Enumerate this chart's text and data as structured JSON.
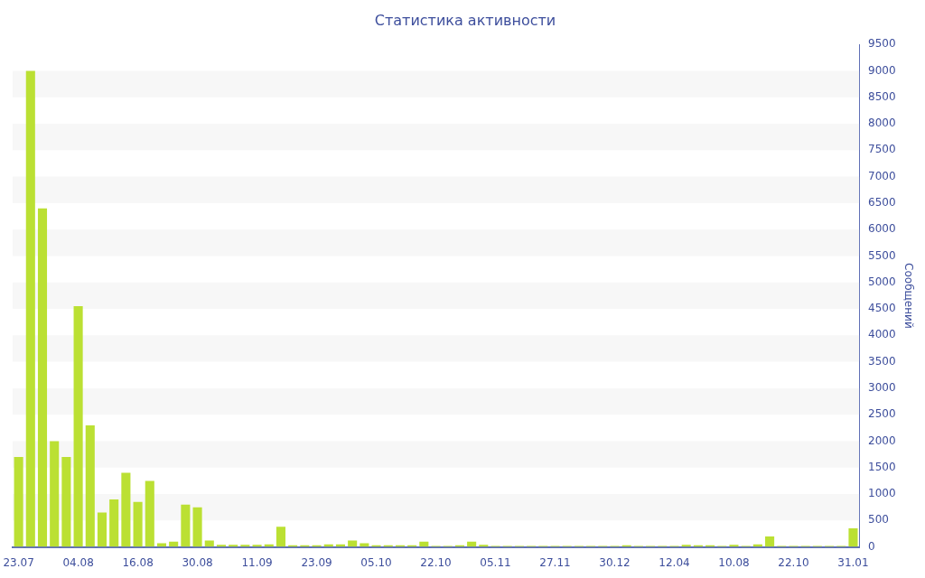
{
  "chart_data": {
    "type": "bar",
    "title": "Статистика активности",
    "ylabel": "Сообщений",
    "categories": [
      "23.07",
      null,
      null,
      null,
      null,
      "04.08",
      null,
      null,
      null,
      null,
      "16.08",
      null,
      null,
      null,
      null,
      "30.08",
      null,
      null,
      null,
      null,
      "11.09",
      null,
      null,
      null,
      null,
      "23.09",
      null,
      null,
      null,
      null,
      "05.10",
      null,
      null,
      null,
      null,
      "22.10",
      null,
      null,
      null,
      null,
      "05.11",
      null,
      null,
      null,
      null,
      "27.11",
      null,
      null,
      null,
      null,
      "30.12",
      null,
      null,
      null,
      null,
      "12.04",
      null,
      null,
      null,
      null,
      "10.08",
      null,
      null,
      null,
      null,
      "22.10",
      null,
      null,
      null,
      null,
      "31.01"
    ],
    "values": [
      1700,
      9000,
      6400,
      2000,
      1700,
      4550,
      2300,
      650,
      900,
      1400,
      850,
      1250,
      70,
      100,
      800,
      750,
      120,
      40,
      40,
      40,
      40,
      50,
      380,
      30,
      30,
      30,
      50,
      50,
      120,
      70,
      30,
      30,
      30,
      30,
      100,
      20,
      20,
      30,
      100,
      40,
      20,
      20,
      20,
      20,
      20,
      20,
      20,
      20,
      20,
      20,
      20,
      30,
      20,
      20,
      20,
      20,
      40,
      30,
      30,
      20,
      40,
      20,
      50,
      200,
      20,
      20,
      20,
      20,
      20,
      20,
      350
    ],
    "color": "#bbe033",
    "ylim": [
      0,
      9500
    ],
    "yticks": [
      0,
      500,
      1000,
      1500,
      2000,
      2500,
      3000,
      3500,
      4000,
      4500,
      5000,
      5500,
      6000,
      6500,
      7000,
      7500,
      8000,
      8500,
      9000,
      9500
    ],
    "bands": [
      {
        "axis": "y",
        "from": 500,
        "to": 1000,
        "color": "#f7f7f7"
      },
      {
        "axis": "y",
        "from": 1500,
        "to": 2000,
        "color": "#f7f7f7"
      },
      {
        "axis": "y",
        "from": 2500,
        "to": 3000,
        "color": "#f7f7f7"
      },
      {
        "axis": "y",
        "from": 3500,
        "to": 4000,
        "color": "#f7f7f7"
      },
      {
        "axis": "y",
        "from": 4500,
        "to": 5000,
        "color": "#f7f7f7"
      },
      {
        "axis": "y",
        "from": 5500,
        "to": 6000,
        "color": "#f7f7f7"
      },
      {
        "axis": "y",
        "from": 6500,
        "to": 7000,
        "color": "#f7f7f7"
      },
      {
        "axis": "y",
        "from": 7500,
        "to": 8000,
        "color": "#f7f7f7"
      },
      {
        "axis": "y",
        "from": 8500,
        "to": 9000,
        "color": "#f7f7f7"
      }
    ],
    "legend": false
  }
}
